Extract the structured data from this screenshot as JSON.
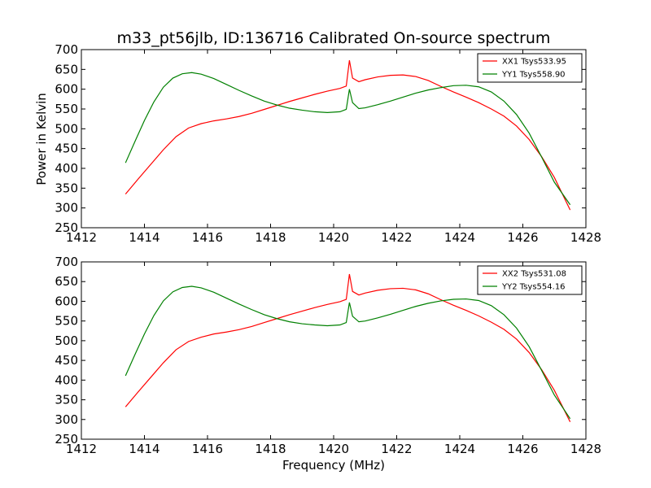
{
  "figure": {
    "title": "m33_pt56jlb, ID:136716 Calibrated On-source spectrum",
    "ylabel": "Power in Kelvin",
    "xlabel": "Frequency (MHz)"
  },
  "chart_data": [
    {
      "type": "line",
      "title": "m33_pt56jlb, ID:136716 Calibrated On-source spectrum",
      "xlabel": "",
      "ylabel": "Power in Kelvin",
      "xlim": [
        1412,
        1428
      ],
      "ylim": [
        250,
        700
      ],
      "xticks": [
        1412,
        1414,
        1416,
        1418,
        1420,
        1422,
        1424,
        1426,
        1428
      ],
      "yticks": [
        250,
        300,
        350,
        400,
        450,
        500,
        550,
        600,
        650,
        700
      ],
      "legend": "top-right",
      "grid": false,
      "series": [
        {
          "name": "XX1 Tsys533.95",
          "color": "#ff0000",
          "points": [
            [
              1413.4,
              335
            ],
            [
              1413.8,
              373
            ],
            [
              1414.2,
              410
            ],
            [
              1414.6,
              447
            ],
            [
              1415.0,
              480
            ],
            [
              1415.4,
              502
            ],
            [
              1415.8,
              513
            ],
            [
              1416.2,
              520
            ],
            [
              1416.6,
              525
            ],
            [
              1417.0,
              531
            ],
            [
              1417.4,
              539
            ],
            [
              1417.8,
              549
            ],
            [
              1418.2,
              559
            ],
            [
              1418.6,
              569
            ],
            [
              1419.0,
              578
            ],
            [
              1419.4,
              587
            ],
            [
              1419.8,
              595
            ],
            [
              1420.2,
              602
            ],
            [
              1420.4,
              608
            ],
            [
              1420.5,
              673
            ],
            [
              1420.6,
              628
            ],
            [
              1420.8,
              619
            ],
            [
              1421.0,
              624
            ],
            [
              1421.4,
              631
            ],
            [
              1421.8,
              635
            ],
            [
              1422.2,
              636
            ],
            [
              1422.6,
              632
            ],
            [
              1423.0,
              622
            ],
            [
              1423.4,
              607
            ],
            [
              1423.8,
              593
            ],
            [
              1424.2,
              580
            ],
            [
              1424.6,
              566
            ],
            [
              1425.0,
              550
            ],
            [
              1425.4,
              532
            ],
            [
              1425.8,
              507
            ],
            [
              1426.2,
              473
            ],
            [
              1426.6,
              429
            ],
            [
              1427.0,
              377
            ],
            [
              1427.5,
              295
            ]
          ]
        },
        {
          "name": "YY1 Tsys558.90",
          "color": "#008000",
          "points": [
            [
              1413.4,
              414
            ],
            [
              1413.7,
              468
            ],
            [
              1414.0,
              521
            ],
            [
              1414.3,
              568
            ],
            [
              1414.6,
              605
            ],
            [
              1414.9,
              628
            ],
            [
              1415.2,
              639
            ],
            [
              1415.5,
              642
            ],
            [
              1415.8,
              638
            ],
            [
              1416.2,
              627
            ],
            [
              1416.6,
              612
            ],
            [
              1417.0,
              597
            ],
            [
              1417.4,
              583
            ],
            [
              1417.8,
              570
            ],
            [
              1418.2,
              560
            ],
            [
              1418.6,
              552
            ],
            [
              1419.0,
              547
            ],
            [
              1419.4,
              543
            ],
            [
              1419.8,
              541
            ],
            [
              1420.2,
              543
            ],
            [
              1420.4,
              549
            ],
            [
              1420.5,
              600
            ],
            [
              1420.6,
              566
            ],
            [
              1420.8,
              551
            ],
            [
              1421.0,
              553
            ],
            [
              1421.4,
              561
            ],
            [
              1421.8,
              570
            ],
            [
              1422.2,
              580
            ],
            [
              1422.6,
              590
            ],
            [
              1423.0,
              598
            ],
            [
              1423.4,
              604
            ],
            [
              1423.8,
              609
            ],
            [
              1424.2,
              610
            ],
            [
              1424.6,
              606
            ],
            [
              1425.0,
              593
            ],
            [
              1425.4,
              570
            ],
            [
              1425.8,
              536
            ],
            [
              1426.2,
              489
            ],
            [
              1426.6,
              428
            ],
            [
              1427.0,
              365
            ],
            [
              1427.5,
              308
            ]
          ]
        }
      ]
    },
    {
      "type": "line",
      "title": "",
      "xlabel": "Frequency (MHz)",
      "ylabel": "",
      "xlim": [
        1412,
        1428
      ],
      "ylim": [
        250,
        700
      ],
      "xticks": [
        1412,
        1414,
        1416,
        1418,
        1420,
        1422,
        1424,
        1426,
        1428
      ],
      "yticks": [
        250,
        300,
        350,
        400,
        450,
        500,
        550,
        600,
        650,
        700
      ],
      "legend": "top-right",
      "grid": false,
      "series": [
        {
          "name": "XX2 Tsys531.08",
          "color": "#ff0000",
          "points": [
            [
              1413.4,
              332
            ],
            [
              1413.8,
              370
            ],
            [
              1414.2,
              407
            ],
            [
              1414.6,
              444
            ],
            [
              1415.0,
              477
            ],
            [
              1415.4,
              498
            ],
            [
              1415.8,
              509
            ],
            [
              1416.2,
              517
            ],
            [
              1416.6,
              522
            ],
            [
              1417.0,
              528
            ],
            [
              1417.4,
              536
            ],
            [
              1417.8,
              546
            ],
            [
              1418.2,
              556
            ],
            [
              1418.6,
              566
            ],
            [
              1419.0,
              575
            ],
            [
              1419.4,
              584
            ],
            [
              1419.8,
              592
            ],
            [
              1420.2,
              599
            ],
            [
              1420.4,
              605
            ],
            [
              1420.5,
              669
            ],
            [
              1420.6,
              625
            ],
            [
              1420.8,
              616
            ],
            [
              1421.0,
              621
            ],
            [
              1421.4,
              628
            ],
            [
              1421.8,
              632
            ],
            [
              1422.2,
              633
            ],
            [
              1422.6,
              629
            ],
            [
              1423.0,
              619
            ],
            [
              1423.4,
              604
            ],
            [
              1423.8,
              590
            ],
            [
              1424.2,
              577
            ],
            [
              1424.6,
              563
            ],
            [
              1425.0,
              547
            ],
            [
              1425.4,
              529
            ],
            [
              1425.8,
              504
            ],
            [
              1426.2,
              470
            ],
            [
              1426.6,
              426
            ],
            [
              1427.0,
              374
            ],
            [
              1427.5,
              294
            ]
          ]
        },
        {
          "name": "YY2 Tsys554.16",
          "color": "#008000",
          "points": [
            [
              1413.4,
              411
            ],
            [
              1413.7,
              465
            ],
            [
              1414.0,
              517
            ],
            [
              1414.3,
              564
            ],
            [
              1414.6,
              601
            ],
            [
              1414.9,
              624
            ],
            [
              1415.2,
              635
            ],
            [
              1415.5,
              638
            ],
            [
              1415.8,
              634
            ],
            [
              1416.2,
              623
            ],
            [
              1416.6,
              608
            ],
            [
              1417.0,
              593
            ],
            [
              1417.4,
              579
            ],
            [
              1417.8,
              566
            ],
            [
              1418.2,
              556
            ],
            [
              1418.6,
              548
            ],
            [
              1419.0,
              543
            ],
            [
              1419.4,
              540
            ],
            [
              1419.8,
              538
            ],
            [
              1420.2,
              540
            ],
            [
              1420.4,
              546
            ],
            [
              1420.5,
              597
            ],
            [
              1420.6,
              562
            ],
            [
              1420.8,
              548
            ],
            [
              1421.0,
              550
            ],
            [
              1421.4,
              558
            ],
            [
              1421.8,
              567
            ],
            [
              1422.2,
              577
            ],
            [
              1422.6,
              587
            ],
            [
              1423.0,
              595
            ],
            [
              1423.4,
              601
            ],
            [
              1423.8,
              605
            ],
            [
              1424.2,
              606
            ],
            [
              1424.6,
              602
            ],
            [
              1425.0,
              589
            ],
            [
              1425.4,
              566
            ],
            [
              1425.8,
              532
            ],
            [
              1426.2,
              485
            ],
            [
              1426.6,
              424
            ],
            [
              1427.0,
              362
            ],
            [
              1427.5,
              302
            ]
          ]
        }
      ]
    }
  ]
}
